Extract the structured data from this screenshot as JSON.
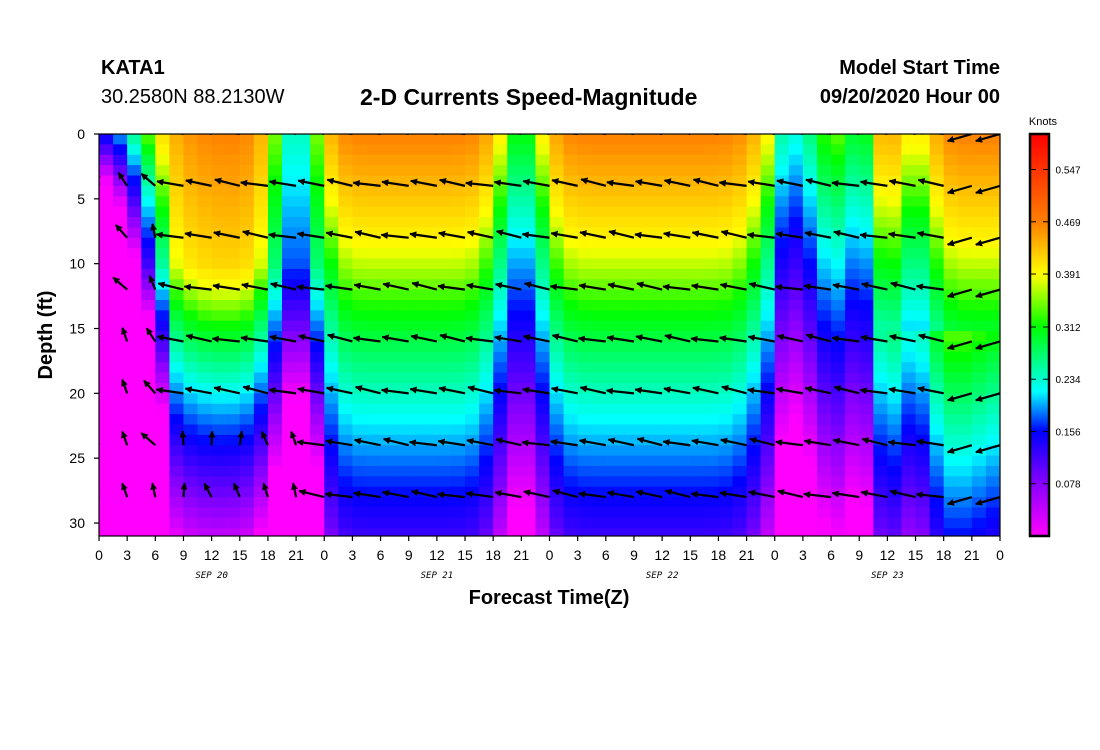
{
  "header": {
    "station": "KATA1",
    "coords": "30.2580N 88.2130W",
    "title": "2-D Currents Speed-Magnitude",
    "model_line1": "Model Start Time",
    "model_line2": "09/20/2020 Hour 00"
  },
  "chart_data": {
    "type": "heatmap",
    "title": "2-D Currents Speed-Magnitude",
    "xlabel": "Forecast Time(Z)",
    "ylabel": "Depth (ft)",
    "x_ticks": [
      "0",
      "3",
      "6",
      "9",
      "12",
      "15",
      "18",
      "21",
      "0",
      "3",
      "6",
      "9",
      "12",
      "15",
      "18",
      "21",
      "0",
      "3",
      "6",
      "9",
      "12",
      "15",
      "18",
      "21",
      "0",
      "3",
      "6",
      "9",
      "12",
      "15",
      "18",
      "21",
      "0"
    ],
    "x_hours": [
      0,
      3,
      6,
      9,
      12,
      15,
      18,
      21,
      24,
      27,
      30,
      33,
      36,
      39,
      42,
      45,
      48,
      51,
      54,
      57,
      60,
      63,
      66,
      69,
      72,
      75,
      78,
      81,
      84,
      87,
      90,
      93,
      96
    ],
    "date_labels": [
      {
        "label": "SEP 20",
        "hour": 12
      },
      {
        "label": "SEP 21",
        "hour": 36
      },
      {
        "label": "SEP 22",
        "hour": 60
      },
      {
        "label": "SEP 23",
        "hour": 84
      }
    ],
    "xlim": [
      0,
      96
    ],
    "y_ticks": [
      "0",
      "5",
      "10",
      "15",
      "20",
      "25",
      "30"
    ],
    "y_values": [
      0,
      5,
      10,
      15,
      20,
      25,
      30
    ],
    "ylim": [
      0,
      31
    ],
    "colorbar": {
      "unit": "Knots",
      "range": [
        0,
        0.6
      ],
      "tick_values": [
        0.078,
        0.156,
        0.234,
        0.312,
        0.391,
        0.469,
        0.547
      ],
      "tick_labels": [
        "0.078",
        "0.156",
        "0.234",
        "0.312",
        "0.391",
        "0.469",
        "0.547"
      ],
      "colors": [
        "#ff00ff",
        "#8800ff",
        "#0000ff",
        "#00ffff",
        "#00ff00",
        "#ffff00",
        "#ff8000",
        "#ff0000"
      ]
    },
    "vector_depths_ft": [
      0,
      4,
      8,
      12,
      16,
      20,
      24,
      28
    ],
    "vector_hours": [
      0,
      3,
      6,
      9,
      12,
      15,
      18,
      21,
      24,
      27,
      30,
      33,
      36,
      39,
      42,
      45,
      48,
      51,
      54,
      57,
      60,
      63,
      66,
      69,
      72,
      75,
      78,
      81,
      84,
      87,
      90,
      93,
      96
    ],
    "vector_direction_note": "predominantly toward west-northwest"
  }
}
